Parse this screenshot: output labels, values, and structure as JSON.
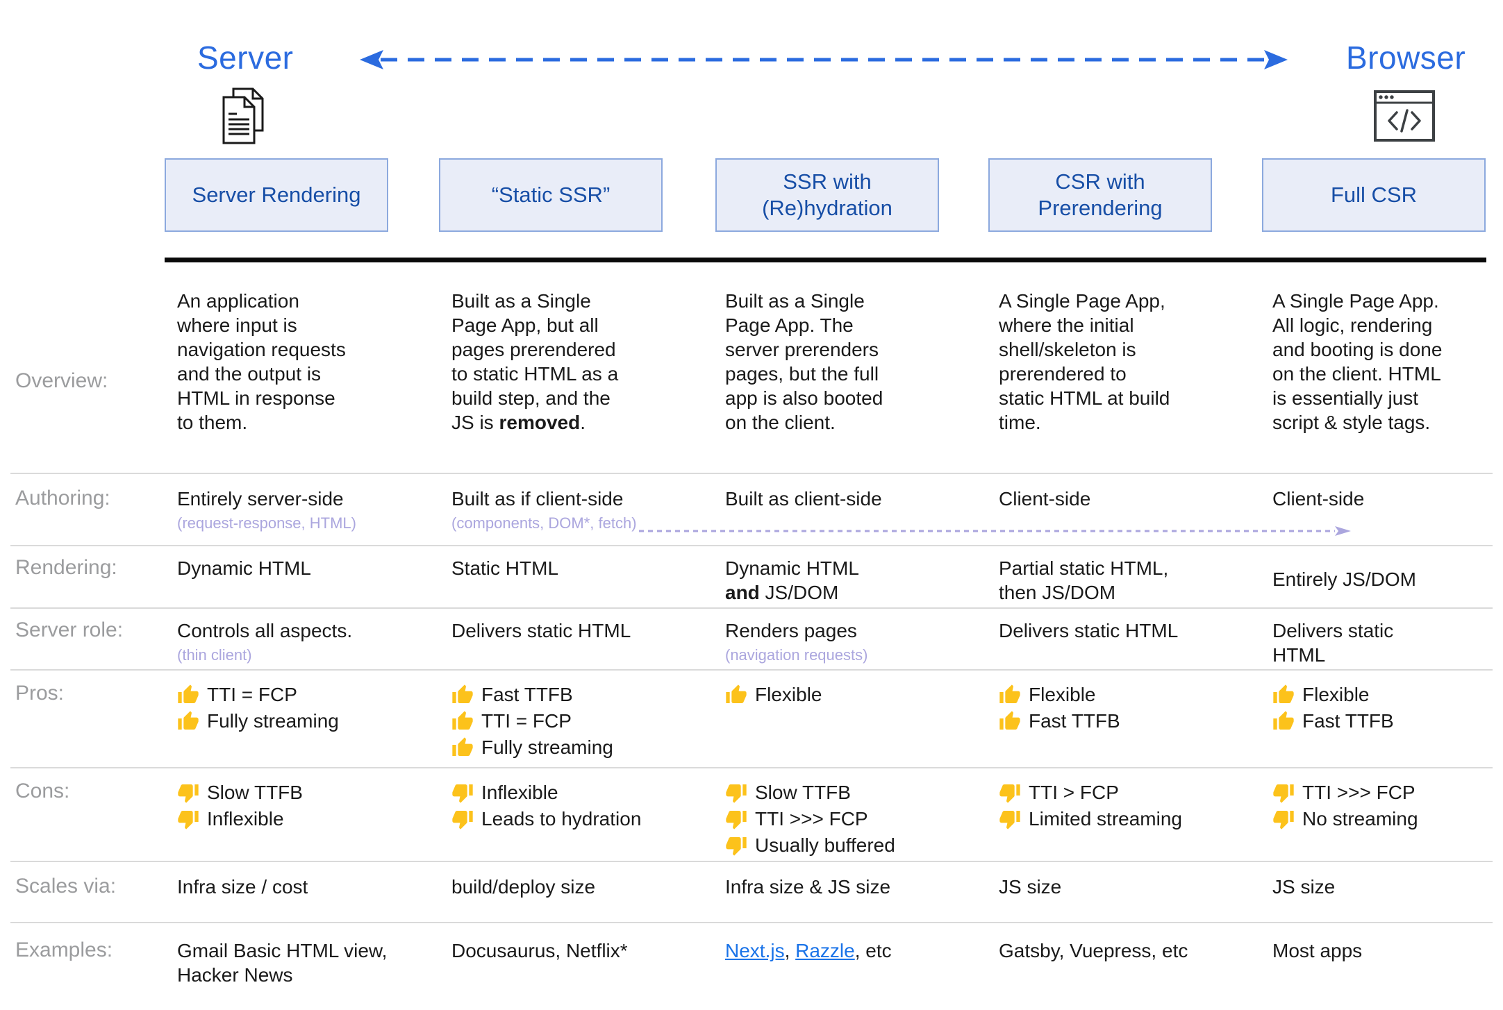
{
  "palette": {
    "accent_blue": "#2b6bdf",
    "box_fill": "#e9edf8",
    "box_border": "#8ca9de",
    "box_text": "#174ea6",
    "label_gray": "#9b9c9e",
    "text_dark": "#1a1a1a",
    "annotation_purple": "#aba6de",
    "divider_gray": "#dadada",
    "thumb_gold": "#fcc21b",
    "link_blue": "#1a73e8"
  },
  "icons": {
    "server": "document-pages-icon",
    "browser": "browser-window-icon",
    "pro": "thumbs-up-icon",
    "con": "thumbs-down-icon"
  },
  "header": {
    "left_title": "Server",
    "right_title": "Browser",
    "columns": [
      "Server Rendering",
      "“Static SSR”",
      "SSR with\n(Re)hydration",
      "CSR with\nPrerendering",
      "Full CSR"
    ]
  },
  "table": {
    "rows": [
      {
        "id": "overview",
        "label": "Overview:",
        "cells": [
          {
            "main": [
              {
                "t": "An application\nwhere input is\nnavigation requests\nand the output is\nHTML in response\nto them."
              }
            ]
          },
          {
            "main": [
              {
                "t": "Built as a Single\nPage App, but all\npages prerendered\nto static HTML as a\nbuild step, and the\nJS is "
              },
              {
                "t": "removed",
                "b": true
              },
              {
                "t": "."
              }
            ]
          },
          {
            "main": [
              {
                "t": "Built as a Single\nPage App. The\nserver prerenders\npages, but the full\napp is also booted\non the client."
              }
            ]
          },
          {
            "main": [
              {
                "t": "A Single Page App,\nwhere the initial\nshell/skeleton is\nprerendered to\nstatic HTML at build\ntime."
              }
            ]
          },
          {
            "main": [
              {
                "t": "A Single Page App.\nAll logic, rendering\nand booting is done\non the client. HTML\nis essentially just\nscript & style tags."
              }
            ]
          }
        ]
      },
      {
        "id": "authoring",
        "label": "Authoring:",
        "cells": [
          {
            "main": [
              {
                "t": "Entirely server-side"
              }
            ],
            "sub": "(request-response, HTML)"
          },
          {
            "main": [
              {
                "t": "Built as if client-side"
              }
            ],
            "sub": "(components, DOM*, fetch)"
          },
          {
            "main": [
              {
                "t": "Built as client-side"
              }
            ]
          },
          {
            "main": [
              {
                "t": "Client-side"
              }
            ]
          },
          {
            "main": [
              {
                "t": "Client-side"
              }
            ]
          }
        ]
      },
      {
        "id": "rendering",
        "label": "Rendering:",
        "cells": [
          {
            "main": [
              {
                "t": "Dynamic HTML"
              }
            ]
          },
          {
            "main": [
              {
                "t": "Static HTML"
              }
            ]
          },
          {
            "main": [
              {
                "t": "Dynamic HTML\n"
              },
              {
                "t": "and",
                "b": true
              },
              {
                "t": " JS/DOM"
              }
            ]
          },
          {
            "main": [
              {
                "t": "Partial static HTML,\nthen JS/DOM"
              }
            ]
          },
          {
            "main": [
              {
                "t": "Entirely JS/DOM"
              }
            ],
            "vcenter": true
          }
        ]
      },
      {
        "id": "server-role",
        "label": "Server role:",
        "cells": [
          {
            "main": [
              {
                "t": "Controls all aspects."
              }
            ],
            "sub": "(thin client)"
          },
          {
            "main": [
              {
                "t": "Delivers static HTML"
              }
            ]
          },
          {
            "main": [
              {
                "t": "Renders pages"
              }
            ],
            "sub": "(navigation requests)"
          },
          {
            "main": [
              {
                "t": "Delivers static HTML"
              }
            ]
          },
          {
            "main": [
              {
                "t": "Delivers static HTML"
              }
            ]
          }
        ]
      },
      {
        "id": "pros",
        "label": "Pros:",
        "cells": [
          {
            "items": [
              {
                "icon": "thumbs-up-icon",
                "text": "TTI = FCP"
              },
              {
                "icon": "thumbs-up-icon",
                "text": "Fully streaming"
              }
            ]
          },
          {
            "items": [
              {
                "icon": "thumbs-up-icon",
                "text": "Fast TTFB"
              },
              {
                "icon": "thumbs-up-icon",
                "text": "TTI = FCP"
              },
              {
                "icon": "thumbs-up-icon",
                "text": "Fully streaming"
              }
            ]
          },
          {
            "items": [
              {
                "icon": "thumbs-up-icon",
                "text": "Flexible"
              }
            ]
          },
          {
            "items": [
              {
                "icon": "thumbs-up-icon",
                "text": "Flexible"
              },
              {
                "icon": "thumbs-up-icon",
                "text": "Fast TTFB"
              }
            ]
          },
          {
            "items": [
              {
                "icon": "thumbs-up-icon",
                "text": "Flexible"
              },
              {
                "icon": "thumbs-up-icon",
                "text": "Fast TTFB"
              }
            ]
          }
        ]
      },
      {
        "id": "cons",
        "label": "Cons:",
        "cells": [
          {
            "items": [
              {
                "icon": "thumbs-down-icon",
                "text": "Slow TTFB"
              },
              {
                "icon": "thumbs-down-icon",
                "text": "Inflexible"
              }
            ]
          },
          {
            "items": [
              {
                "icon": "thumbs-down-icon",
                "text": "Inflexible"
              },
              {
                "icon": "thumbs-down-icon",
                "text": "Leads to hydration"
              }
            ]
          },
          {
            "items": [
              {
                "icon": "thumbs-down-icon",
                "text": "Slow TTFB"
              },
              {
                "icon": "thumbs-down-icon",
                "text": "TTI >>> FCP"
              },
              {
                "icon": "thumbs-down-icon",
                "text": "Usually buffered"
              }
            ]
          },
          {
            "items": [
              {
                "icon": "thumbs-down-icon",
                "text": "TTI > FCP"
              },
              {
                "icon": "thumbs-down-icon",
                "text": "Limited streaming"
              }
            ]
          },
          {
            "items": [
              {
                "icon": "thumbs-down-icon",
                "text": "TTI >>> FCP"
              },
              {
                "icon": "thumbs-down-icon",
                "text": "No streaming"
              }
            ]
          }
        ]
      },
      {
        "id": "scales-via",
        "label": "Scales via:",
        "cells": [
          {
            "main": [
              {
                "t": "Infra size / cost"
              }
            ]
          },
          {
            "main": [
              {
                "t": "build/deploy size"
              }
            ]
          },
          {
            "main": [
              {
                "t": "Infra size & JS size"
              }
            ]
          },
          {
            "main": [
              {
                "t": "JS size"
              }
            ]
          },
          {
            "main": [
              {
                "t": "JS size"
              }
            ]
          }
        ]
      },
      {
        "id": "examples",
        "label": "Examples:",
        "cells": [
          {
            "main": [
              {
                "t": "Gmail Basic HTML view,\nHacker News"
              }
            ]
          },
          {
            "main": [
              {
                "t": "Docusaurus, Netflix*"
              }
            ]
          },
          {
            "main": [
              {
                "t": "Next.js",
                "link": true
              },
              {
                "t": ", "
              },
              {
                "t": "Razzle",
                "link": true
              },
              {
                "t": ", etc"
              }
            ]
          },
          {
            "main": [
              {
                "t": "Gatsby, Vuepress, etc"
              }
            ]
          },
          {
            "main": [
              {
                "t": "Most apps"
              }
            ]
          }
        ]
      }
    ]
  }
}
